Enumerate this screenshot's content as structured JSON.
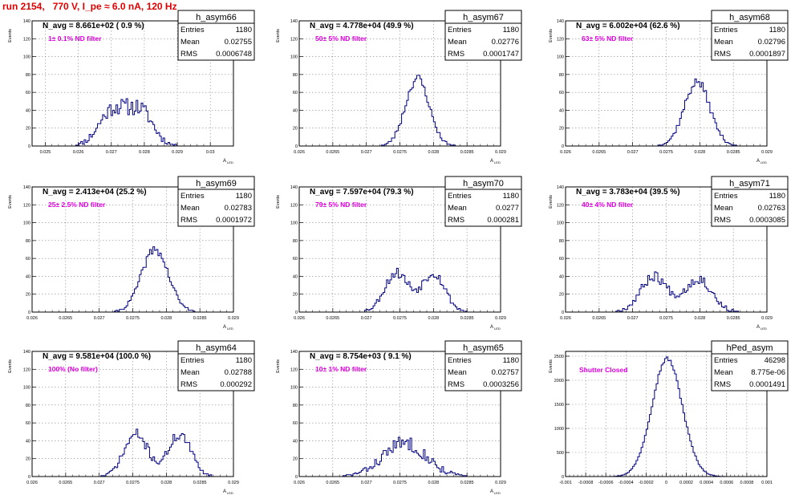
{
  "page_title": "run 2154,   770 V, I_pe ≈ 6.0 nA, 120 Hz",
  "y_axis_label": "Events",
  "x_axis_label": "A",
  "x_axis_label_sub": "LED",
  "stats_labels": {
    "entries": "Entries",
    "mean": "Mean",
    "rms": "RMS"
  },
  "colors": {
    "histogram": "#000080",
    "annotation": "#e000e0",
    "title": "#e00000"
  },
  "chart_data": [
    {
      "type": "histogram",
      "name": "h_asym66",
      "navg_text": "N_avg = 8.661e+02 ( 0.9 %)",
      "filter_text": "1± 0.1% ND filter",
      "entries": "1180",
      "mean": "0.02755",
      "rms": "0.0006748",
      "xlim": [
        0.0246,
        0.0307
      ],
      "ylim": [
        0,
        140
      ],
      "xticks": [
        0.025,
        0.026,
        0.027,
        0.028,
        0.029,
        0.03
      ],
      "xtick_labels": [
        "0.025",
        "0.026",
        "0.027",
        "0.028",
        "0.029",
        "0.03"
      ],
      "yticks": [
        0,
        20,
        40,
        60,
        80,
        100,
        120,
        140
      ],
      "grid": true,
      "bins": 120,
      "mu": 0.02755,
      "sigma": 0.00062,
      "peaks": [
        [
          0.02705,
          40,
          0.00042
        ],
        [
          0.0279,
          37,
          0.00038
        ]
      ],
      "jitter": 9,
      "seed": 11
    },
    {
      "type": "histogram",
      "name": "h_asym67",
      "navg_text": "N_avg = 4.778e+04 (49.9 %)",
      "filter_text": "50± 5% ND filter",
      "entries": "1180",
      "mean": "0.02776",
      "rms": "0.0001747",
      "xlim": [
        0.026,
        0.029
      ],
      "ylim": [
        0,
        140
      ],
      "xticks": [
        0.026,
        0.0265,
        0.027,
        0.0275,
        0.028,
        0.0285,
        0.029
      ],
      "xtick_labels": [
        "0.026",
        "0.0265",
        "0.027",
        "0.0275",
        "0.028",
        "0.0285",
        "0.029"
      ],
      "yticks": [
        0,
        20,
        40,
        60,
        80,
        100,
        120,
        140
      ],
      "grid": true,
      "bins": 120,
      "peaks": [
        [
          0.02776,
          76,
          0.000175
        ]
      ],
      "jitter": 5,
      "seed": 23
    },
    {
      "type": "histogram",
      "name": "h_asym68",
      "navg_text": "N_avg = 6.002e+04 (62.6 %)",
      "filter_text": "63± 5% ND filter",
      "entries": "1180",
      "mean": "0.02796",
      "rms": "0.0001897",
      "xlim": [
        0.026,
        0.029
      ],
      "ylim": [
        0,
        140
      ],
      "xticks": [
        0.026,
        0.0265,
        0.027,
        0.0275,
        0.028,
        0.0285,
        0.029
      ],
      "xtick_labels": [
        "0.026",
        "0.0265",
        "0.027",
        "0.0275",
        "0.028",
        "0.0285",
        "0.029"
      ],
      "yticks": [
        0,
        20,
        40,
        60,
        80,
        100,
        120,
        140
      ],
      "grid": true,
      "bins": 120,
      "peaks": [
        [
          0.02796,
          72,
          0.00019
        ]
      ],
      "jitter": 5,
      "seed": 37
    },
    {
      "type": "histogram",
      "name": "h_asym69",
      "navg_text": "N_avg = 2.413e+04 (25.2 %)",
      "filter_text": "25± 2.5% ND filter",
      "entries": "1180",
      "mean": "0.02783",
      "rms": "0.0001972",
      "xlim": [
        0.026,
        0.029
      ],
      "ylim": [
        0,
        140
      ],
      "xticks": [
        0.026,
        0.0265,
        0.027,
        0.0275,
        0.028,
        0.0285,
        0.029
      ],
      "xtick_labels": [
        "0.026",
        "0.0265",
        "0.027",
        "0.0275",
        "0.028",
        "0.0285",
        "0.029"
      ],
      "yticks": [
        0,
        20,
        40,
        60,
        80,
        100,
        120,
        140
      ],
      "grid": true,
      "bins": 120,
      "peaks": [
        [
          0.02783,
          70,
          0.0002
        ]
      ],
      "jitter": 5,
      "seed": 41
    },
    {
      "type": "histogram",
      "name": "h_asym70",
      "navg_text": "N_avg = 7.597e+04 (79.3 %)",
      "filter_text": "79± 5% ND filter",
      "entries": "1180",
      "mean": "0.0277",
      "rms": "0.000281",
      "xlim": [
        0.026,
        0.029
      ],
      "ylim": [
        0,
        140
      ],
      "xticks": [
        0.026,
        0.0265,
        0.027,
        0.0275,
        0.028,
        0.0285,
        0.029
      ],
      "xtick_labels": [
        "0.026",
        "0.0265",
        "0.027",
        "0.0275",
        "0.028",
        "0.0285",
        "0.029"
      ],
      "yticks": [
        0,
        20,
        40,
        60,
        80,
        100,
        120,
        140
      ],
      "grid": true,
      "bins": 120,
      "peaks": [
        [
          0.02745,
          44,
          0.00018
        ],
        [
          0.028,
          44,
          0.00017
        ]
      ],
      "jitter": 6,
      "seed": 53
    },
    {
      "type": "histogram",
      "name": "h_asym71",
      "navg_text": "N_avg = 3.783e+04 (39.5 %)",
      "filter_text": "40± 4% ND filter",
      "entries": "1180",
      "mean": "0.02763",
      "rms": "0.0003085",
      "xlim": [
        0.026,
        0.029
      ],
      "ylim": [
        0,
        140
      ],
      "xticks": [
        0.026,
        0.0265,
        0.027,
        0.0275,
        0.028,
        0.0285,
        0.029
      ],
      "xtick_labels": [
        "0.026",
        "0.0265",
        "0.027",
        "0.0275",
        "0.028",
        "0.0285",
        "0.029"
      ],
      "yticks": [
        0,
        20,
        40,
        60,
        80,
        100,
        120,
        140
      ],
      "grid": true,
      "bins": 120,
      "peaks": [
        [
          0.02732,
          40,
          0.0002
        ],
        [
          0.02798,
          37,
          0.0002
        ]
      ],
      "jitter": 6,
      "seed": 67
    },
    {
      "type": "histogram",
      "name": "h_asym64",
      "navg_text": "N_avg = 9.581e+04 (100.0 %)",
      "filter_text": "100% (No filter)",
      "entries": "1180",
      "mean": "0.02788",
      "rms": "0.000292",
      "xlim": [
        0.026,
        0.029
      ],
      "ylim": [
        0,
        140
      ],
      "xticks": [
        0.026,
        0.0265,
        0.027,
        0.0275,
        0.028,
        0.0285,
        0.029
      ],
      "xtick_labels": [
        "0.026",
        "0.0265",
        "0.027",
        "0.0275",
        "0.028",
        "0.0285",
        "0.029"
      ],
      "yticks": [
        0,
        20,
        40,
        60,
        80,
        100,
        120,
        140
      ],
      "grid": true,
      "bins": 120,
      "peaks": [
        [
          0.02755,
          47,
          0.00018
        ],
        [
          0.0282,
          47,
          0.00017
        ]
      ],
      "jitter": 6,
      "seed": 71
    },
    {
      "type": "histogram",
      "name": "h_asym65",
      "navg_text": "N_avg = 8.754e+03 ( 9.1 %)",
      "filter_text": "10± 1% ND filter",
      "entries": "1180",
      "mean": "0.02757",
      "rms": "0.0003256",
      "xlim": [
        0.026,
        0.029
      ],
      "ylim": [
        0,
        140
      ],
      "xticks": [
        0.026,
        0.0265,
        0.027,
        0.0275,
        0.028,
        0.0285,
        0.029
      ],
      "xtick_labels": [
        "0.026",
        "0.0265",
        "0.027",
        "0.0275",
        "0.028",
        "0.0285",
        "0.029"
      ],
      "yticks": [
        0,
        20,
        40,
        60,
        80,
        100,
        120,
        140
      ],
      "grid": true,
      "bins": 120,
      "peaks": [
        [
          0.02757,
          38,
          0.00032
        ]
      ],
      "jitter": 8,
      "seed": 83
    },
    {
      "type": "histogram",
      "name": "hPed_asym",
      "navg_text": "",
      "filter_text": "Shutter Closed",
      "entries": "46298",
      "mean": "8.775e-06",
      "rms": "0.0001491",
      "xlim": [
        -0.001,
        0.001
      ],
      "ylim": [
        0,
        2600
      ],
      "xticks": [
        -0.001,
        -0.0008,
        -0.0006,
        -0.0004,
        -0.0002,
        0,
        0.0002,
        0.0004,
        0.0006,
        0.0008,
        0.001
      ],
      "xtick_labels": [
        "-0.001",
        "-0.0008",
        "-0.0006",
        "-0.0004",
        "-0.0002",
        "0",
        "0.0002",
        "0.0004",
        "0.0006",
        "0.0008",
        "0.001"
      ],
      "yticks": [
        0,
        500,
        1000,
        1500,
        2000,
        2500
      ],
      "grid": true,
      "bins": 120,
      "peaks": [
        [
          8.8e-06,
          2450,
          0.00015
        ]
      ],
      "jitter": 40,
      "seed": 97
    }
  ]
}
